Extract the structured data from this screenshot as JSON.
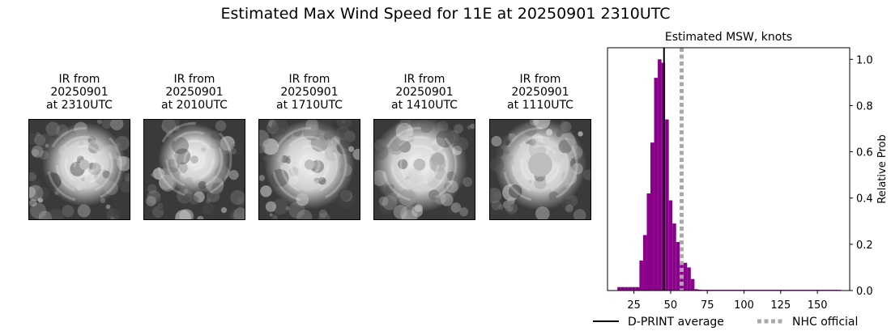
{
  "suptitle": "Estimated Max Wind Speed for 11E at 20250901 2310UTC",
  "ir_panels": [
    {
      "line1": "IR from",
      "line2": "20250901",
      "line3": "at 2310UTC"
    },
    {
      "line1": "IR from",
      "line2": "20250901",
      "line3": "at 2010UTC"
    },
    {
      "line1": "IR from",
      "line2": "20250901",
      "line3": "at 1710UTC"
    },
    {
      "line1": "IR from",
      "line2": "20250901",
      "line3": "at 1410UTC"
    },
    {
      "line1": "IR from",
      "line2": "20250901",
      "line3": "at 1110UTC"
    }
  ],
  "chart_data": {
    "type": "bar",
    "title": "Estimated MSW, knots",
    "xlabel": "",
    "ylabel": "Relative Prob",
    "xlim": [
      7,
      172
    ],
    "ylim": [
      0,
      1.05
    ],
    "xticks": [
      25,
      50,
      75,
      100,
      125,
      150
    ],
    "yticks": [
      0.0,
      0.2,
      0.4,
      0.6,
      0.8,
      1.0
    ],
    "ytick_labels": [
      "0.0",
      "0.2",
      "0.4",
      "0.6",
      "0.8",
      "1.0"
    ],
    "y_axis_side": "right",
    "bar_color": "#8b008b",
    "bin_width": 2.5,
    "bins": [
      {
        "x": 15,
        "y": 0.015
      },
      {
        "x": 17.5,
        "y": 0.015
      },
      {
        "x": 20,
        "y": 0.015
      },
      {
        "x": 22.5,
        "y": 0.015
      },
      {
        "x": 25,
        "y": 0.015
      },
      {
        "x": 27.5,
        "y": 0.015
      },
      {
        "x": 30,
        "y": 0.13
      },
      {
        "x": 32.5,
        "y": 0.24
      },
      {
        "x": 35,
        "y": 0.42
      },
      {
        "x": 37.5,
        "y": 0.64
      },
      {
        "x": 40,
        "y": 0.92
      },
      {
        "x": 42.5,
        "y": 1.0
      },
      {
        "x": 45,
        "y": 0.985
      },
      {
        "x": 47.5,
        "y": 0.74
      },
      {
        "x": 50,
        "y": 0.39
      },
      {
        "x": 52.5,
        "y": 0.29
      },
      {
        "x": 55,
        "y": 0.21
      },
      {
        "x": 57.5,
        "y": 0.12
      },
      {
        "x": 60,
        "y": 0.12
      },
      {
        "x": 62.5,
        "y": 0.1
      },
      {
        "x": 65,
        "y": 0.05
      },
      {
        "x": 67.5,
        "y": 0.006
      },
      {
        "x": 70,
        "y": 0.004
      },
      {
        "x": 72.5,
        "y": 0.003
      },
      {
        "x": 75,
        "y": 0.003
      },
      {
        "x": 77.5,
        "y": 0.003
      },
      {
        "x": 80,
        "y": 0.003
      },
      {
        "x": 82.5,
        "y": 0.003
      },
      {
        "x": 85,
        "y": 0.003
      },
      {
        "x": 87.5,
        "y": 0.003
      },
      {
        "x": 90,
        "y": 0.003
      },
      {
        "x": 92.5,
        "y": 0.003
      },
      {
        "x": 95,
        "y": 0.003
      },
      {
        "x": 97.5,
        "y": 0.003
      },
      {
        "x": 100,
        "y": 0.003
      },
      {
        "x": 102.5,
        "y": 0.003
      },
      {
        "x": 105,
        "y": 0.003
      },
      {
        "x": 107.5,
        "y": 0.003
      },
      {
        "x": 110,
        "y": 0.003
      },
      {
        "x": 112.5,
        "y": 0.003
      },
      {
        "x": 115,
        "y": 0.003
      },
      {
        "x": 117.5,
        "y": 0.003
      },
      {
        "x": 120,
        "y": 0.003
      },
      {
        "x": 122.5,
        "y": 0.003
      },
      {
        "x": 125,
        "y": 0.003
      },
      {
        "x": 127.5,
        "y": 0.003
      },
      {
        "x": 130,
        "y": 0.003
      },
      {
        "x": 132.5,
        "y": 0.003
      },
      {
        "x": 135,
        "y": 0.003
      },
      {
        "x": 137.5,
        "y": 0.003
      },
      {
        "x": 140,
        "y": 0.003
      },
      {
        "x": 142.5,
        "y": 0.003
      },
      {
        "x": 145,
        "y": 0.003
      },
      {
        "x": 147.5,
        "y": 0.003
      },
      {
        "x": 150,
        "y": 0.003
      },
      {
        "x": 152.5,
        "y": 0.003
      },
      {
        "x": 155,
        "y": 0.003
      },
      {
        "x": 157.5,
        "y": 0.003
      },
      {
        "x": 160,
        "y": 0.003
      },
      {
        "x": 162.5,
        "y": 0.003
      },
      {
        "x": 165,
        "y": 0.003
      }
    ],
    "lines": [
      {
        "name": "D-PRINT average",
        "x": 45.5,
        "color": "#000000",
        "style": "solid"
      },
      {
        "name": "NHC official",
        "x": 57.5,
        "color": "#a9a9a9",
        "style": "dotted"
      }
    ],
    "legend": "bottom"
  }
}
